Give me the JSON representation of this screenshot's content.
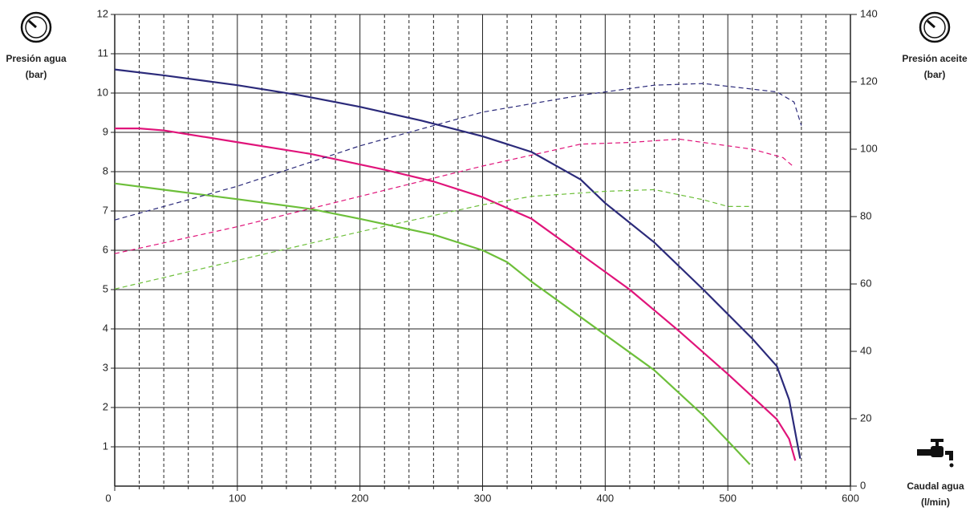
{
  "chart_data": {
    "type": "line",
    "ylabel": [
      "Presión agua",
      "(bar)"
    ],
    "y2label": [
      "Presión aceite",
      "(bar)"
    ],
    "xlabel": [
      "Caudal agua",
      "(l/min)"
    ],
    "xlim": [
      0,
      600
    ],
    "xticks": [
      0,
      100,
      200,
      300,
      400,
      500,
      600
    ],
    "xminor": [
      20,
      40,
      60,
      80,
      120,
      140,
      160,
      180,
      220,
      240,
      260,
      280,
      320,
      340,
      360,
      380,
      420,
      440,
      460,
      480,
      520,
      540,
      560,
      580
    ],
    "ylim": [
      0,
      12
    ],
    "yticks": [
      1,
      2,
      3,
      4,
      5,
      6,
      7,
      8,
      9,
      10,
      11,
      12
    ],
    "y2lim": [
      0,
      140
    ],
    "y2ticks": [
      0,
      20,
      40,
      60,
      80,
      100,
      120,
      140
    ],
    "grid": true,
    "series": [
      {
        "color": "#2b2a7a",
        "dash": false,
        "x": [
          0,
          40,
          100,
          150,
          200,
          250,
          300,
          340,
          380,
          400,
          440,
          480,
          520,
          540,
          550,
          556,
          559
        ],
        "values": [
          10.6,
          10.45,
          10.2,
          9.95,
          9.65,
          9.3,
          8.9,
          8.5,
          7.8,
          7.2,
          6.2,
          5.0,
          3.75,
          3.05,
          2.2,
          1.2,
          0.7
        ]
      },
      {
        "color": "#e0147a",
        "dash": false,
        "x": [
          0,
          20,
          40,
          100,
          160,
          220,
          260,
          300,
          340,
          380,
          420,
          460,
          500,
          540,
          550,
          555
        ],
        "values": [
          9.1,
          9.1,
          9.05,
          8.75,
          8.45,
          8.05,
          7.75,
          7.35,
          6.8,
          5.9,
          5.0,
          3.95,
          2.85,
          1.7,
          1.2,
          0.65
        ]
      },
      {
        "color": "#6dbf3a",
        "dash": false,
        "x": [
          0,
          50,
          100,
          160,
          200,
          260,
          300,
          320,
          340,
          380,
          440,
          480,
          500,
          518
        ],
        "values": [
          7.7,
          7.5,
          7.3,
          7.05,
          6.8,
          6.4,
          6.0,
          5.7,
          5.2,
          4.3,
          2.95,
          1.8,
          1.15,
          0.55
        ]
      },
      {
        "color": "#2b2a7a",
        "dash": true,
        "axis": "y2",
        "x": [
          0,
          100,
          200,
          300,
          380,
          440,
          480,
          540,
          554,
          560
        ],
        "values": [
          79,
          89,
          101,
          111,
          116,
          119,
          119.5,
          117,
          114,
          107
        ]
      },
      {
        "color": "#e0147a",
        "dash": true,
        "axis": "y2",
        "x": [
          0,
          100,
          200,
          300,
          380,
          420,
          460,
          520,
          545,
          553
        ],
        "values": [
          69,
          77,
          86,
          95,
          101.5,
          102,
          103,
          100,
          97.5,
          95
        ]
      },
      {
        "color": "#6dbf3a",
        "dash": true,
        "axis": "y2",
        "x": [
          0,
          100,
          200,
          300,
          340,
          400,
          440,
          480,
          500,
          518
        ],
        "values": [
          58.5,
          67,
          75.5,
          83.5,
          86,
          87.5,
          88,
          85,
          83,
          83
        ]
      }
    ]
  }
}
